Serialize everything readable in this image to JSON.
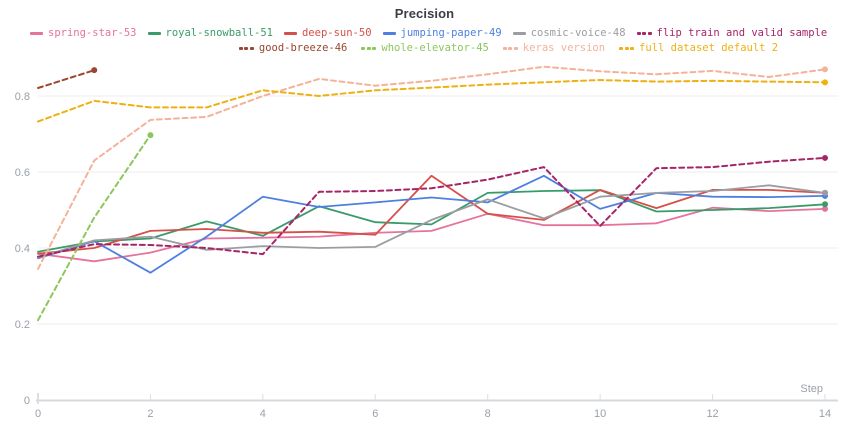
{
  "header": {
    "title": "Precision"
  },
  "axes": {
    "x_label": "Step",
    "x_tick_labels": [
      "0",
      "2",
      "4",
      "6",
      "8",
      "10",
      "12",
      "14"
    ],
    "x_tick_steps": [
      0,
      2,
      4,
      6,
      8,
      10,
      12,
      14
    ],
    "y_tick_labels": [
      "0",
      "0.2",
      "0.4",
      "0.6",
      "0.8"
    ],
    "y_tick_values": [
      0,
      0.2,
      0.4,
      0.6,
      0.8
    ]
  },
  "colors": {
    "title_text": "#3b3e44",
    "tick_text": "#9aa0a8",
    "axis_line": "#d6d8dd",
    "tick_mark": "#dcdee3",
    "gridline": "#ededef",
    "background": "#ffffff"
  },
  "chart_data": {
    "type": "line",
    "title": "Precision",
    "xlabel": "Step",
    "ylabel": "",
    "xlim": [
      0,
      14
    ],
    "ylim": [
      0,
      0.9
    ],
    "grid": "horizontal-only",
    "legend_position": "top",
    "x_steps": [
      0,
      1,
      2,
      3,
      4,
      5,
      6,
      7,
      8,
      9,
      10,
      11,
      12,
      13,
      14
    ],
    "series": [
      {
        "name": "spring-star-53",
        "color": "#e5739d",
        "dash": "solid",
        "x": [
          0,
          1,
          2,
          3,
          4,
          5,
          6,
          7,
          8,
          9,
          10,
          11,
          12,
          13,
          14
        ],
        "values": [
          0.385,
          0.365,
          0.388,
          0.425,
          0.427,
          0.43,
          0.44,
          0.445,
          0.49,
          0.46,
          0.46,
          0.465,
          0.506,
          0.497,
          0.503
        ]
      },
      {
        "name": "royal-snowball-51",
        "color": "#3a9b6a",
        "dash": "solid",
        "x": [
          0,
          1,
          2,
          3,
          4,
          5,
          6,
          7,
          8,
          9,
          10,
          11,
          12,
          13,
          14
        ],
        "values": [
          0.39,
          0.417,
          0.425,
          0.47,
          0.432,
          0.51,
          0.468,
          0.462,
          0.545,
          0.55,
          0.552,
          0.496,
          0.5,
          0.505,
          0.515
        ]
      },
      {
        "name": "deep-sun-50",
        "color": "#d6504a",
        "dash": "solid",
        "x": [
          0,
          1,
          2,
          3,
          4,
          5,
          6,
          7,
          8,
          9,
          10,
          11,
          12,
          13,
          14
        ],
        "values": [
          0.385,
          0.4,
          0.445,
          0.45,
          0.44,
          0.443,
          0.435,
          0.59,
          0.49,
          0.474,
          0.553,
          0.505,
          0.553,
          0.553,
          0.545
        ]
      },
      {
        "name": "jumping-paper-49",
        "color": "#4e7fe1",
        "dash": "solid",
        "x": [
          0,
          1,
          2,
          3,
          4,
          5,
          6,
          7,
          8,
          9,
          10,
          11,
          12,
          13,
          14
        ],
        "values": [
          0.373,
          0.418,
          0.335,
          0.43,
          0.535,
          0.508,
          0.52,
          0.533,
          0.52,
          0.59,
          0.503,
          0.545,
          0.535,
          0.534,
          0.537
        ]
      },
      {
        "name": "cosmic-voice-48",
        "color": "#9b9da3",
        "dash": "solid",
        "x": [
          0,
          1,
          2,
          3,
          4,
          5,
          6,
          7,
          8,
          9,
          10,
          11,
          12,
          13,
          14
        ],
        "values": [
          0.375,
          0.42,
          0.43,
          0.395,
          0.405,
          0.4,
          0.403,
          0.474,
          0.528,
          0.478,
          0.535,
          0.545,
          0.55,
          0.565,
          0.545
        ]
      },
      {
        "name": "flip train and valid sample",
        "color": "#a52667",
        "dash": "dashed",
        "x": [
          0,
          1,
          2,
          3,
          4,
          5,
          6,
          7,
          8,
          9,
          10,
          11,
          12,
          13,
          14
        ],
        "values": [
          0.377,
          0.41,
          0.408,
          0.4,
          0.384,
          0.548,
          0.55,
          0.557,
          0.58,
          0.613,
          0.458,
          0.61,
          0.613,
          0.627,
          0.637
        ]
      },
      {
        "name": "good-breeze-46",
        "color": "#99472e",
        "dash": "dashed",
        "x": [
          0,
          1
        ],
        "values": [
          0.821,
          0.868
        ]
      },
      {
        "name": "whole-elevator-45",
        "color": "#8cc75c",
        "dash": "dashed",
        "x": [
          0,
          1,
          2
        ],
        "values": [
          0.21,
          0.48,
          0.697
        ]
      },
      {
        "name": "keras version",
        "color": "#f3b39a",
        "dash": "dashed",
        "x": [
          0,
          1,
          2,
          3,
          4,
          5,
          6,
          7,
          8,
          9,
          10,
          11,
          12,
          13,
          14
        ],
        "values": [
          0.345,
          0.63,
          0.737,
          0.745,
          0.8,
          0.845,
          0.827,
          0.84,
          0.857,
          0.877,
          0.865,
          0.857,
          0.866,
          0.85,
          0.87
        ]
      },
      {
        "name": "full dataset default 2",
        "color": "#edb112",
        "dash": "dashed",
        "x": [
          0,
          1,
          2,
          3,
          4,
          5,
          6,
          7,
          8,
          9,
          10,
          11,
          12,
          13,
          14
        ],
        "values": [
          0.733,
          0.787,
          0.77,
          0.77,
          0.815,
          0.8,
          0.815,
          0.822,
          0.83,
          0.836,
          0.842,
          0.838,
          0.84,
          0.838,
          0.836
        ]
      }
    ],
    "legend_rows": [
      [
        "spring-star-53",
        "royal-snowball-51",
        "deep-sun-50",
        "jumping-paper-49",
        "cosmic-voice-48",
        "flip train and valid sample"
      ],
      [
        "good-breeze-46",
        "whole-elevator-45",
        "keras version",
        "full dataset default 2"
      ]
    ]
  }
}
